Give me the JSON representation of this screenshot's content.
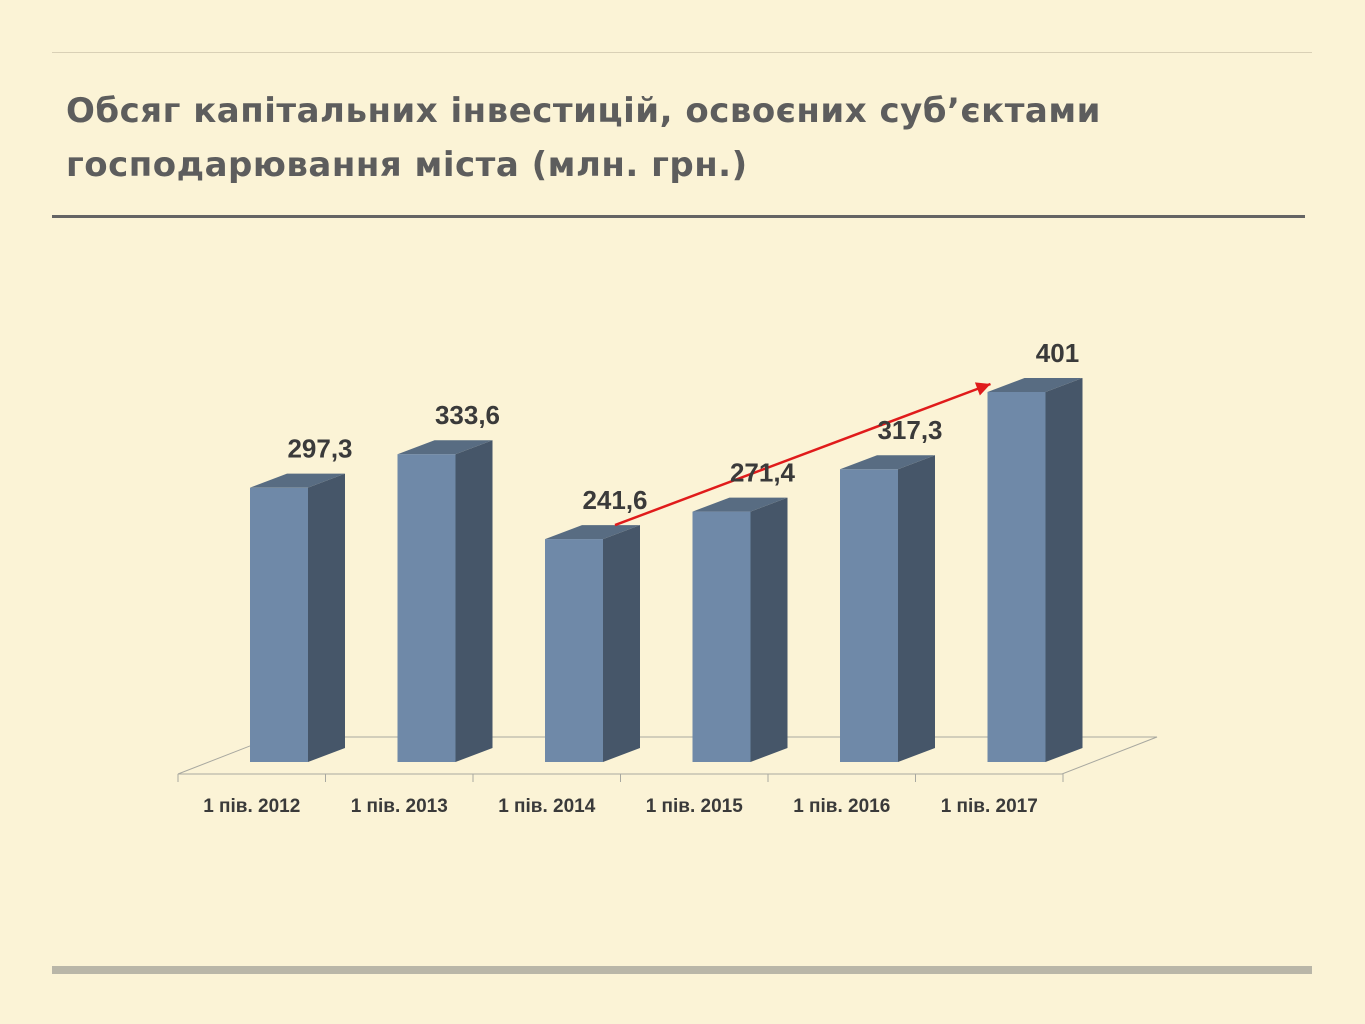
{
  "slide": {
    "title_line1": "Обсяг капітальних інвестицій, освоєних суб’єктами",
    "title_line2": "господарювання міста (млн. грн.)"
  },
  "chart_data": {
    "type": "bar",
    "style": "3d-column",
    "categories": [
      "1 пів. 2012",
      "1 пів. 2013",
      "1 пів. 2014",
      "1 пів. 2015",
      "1 пів. 2016",
      "1 пів. 2017"
    ],
    "series": [
      {
        "values": [
          297.3,
          333.6,
          241.6,
          271.4,
          317.3,
          401
        ]
      }
    ],
    "data_labels": [
      "297,3",
      "333,6",
      "241,6",
      "271,4",
      "317,3",
      "401"
    ],
    "ylim": [
      0,
      401
    ],
    "grid": false,
    "legend": "none",
    "colors": {
      "front": "#6f89a8",
      "side": "#465669",
      "top": "#586c82",
      "arrow": "#e01b1b"
    },
    "annotations": [
      {
        "type": "trend-arrow",
        "from_category": "1 пів. 2014",
        "to_category": "1 пів. 2017"
      }
    ]
  }
}
